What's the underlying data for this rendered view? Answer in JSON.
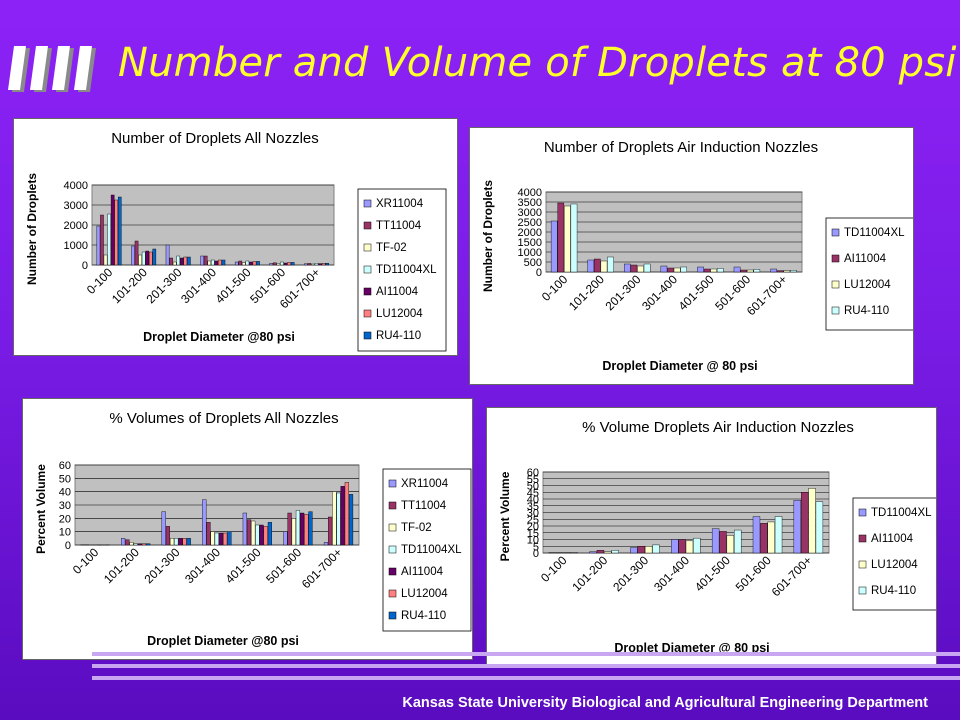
{
  "slide": {
    "title": "Number and Volume of Droplets at 80 psi",
    "footer": "Kansas State University Biological and Agricultural Engineering Department",
    "colors": {
      "background": "#8a20f0",
      "title": "#ffff2a",
      "plot_area": "#c0c0c0"
    }
  },
  "chart_data": [
    {
      "type": "bar",
      "title": "Number of Droplets All Nozzles",
      "xlabel": "Droplet Diameter @80 psi",
      "ylabel": "Number of Droplets",
      "ylim": [
        0,
        4000
      ],
      "yticks": [
        0,
        1000,
        2000,
        3000,
        4000
      ],
      "categories": [
        "0-100",
        "101-200",
        "201-300",
        "301-400",
        "401-500",
        "501-600",
        "601-700+"
      ],
      "legend_position": "right",
      "series": [
        {
          "name": "XR11004",
          "color": "#9999ff",
          "values": [
            1950,
            950,
            1000,
            450,
            150,
            90,
            60
          ]
        },
        {
          "name": "TT11004",
          "color": "#993366",
          "values": [
            2500,
            1200,
            350,
            450,
            200,
            110,
            80
          ]
        },
        {
          "name": "TF-02",
          "color": "#ffffcc",
          "values": [
            500,
            500,
            150,
            200,
            120,
            80,
            50
          ]
        },
        {
          "name": "TD11004XL",
          "color": "#ccffff",
          "values": [
            2550,
            650,
            450,
            250,
            200,
            150,
            90
          ]
        },
        {
          "name": "AI11004",
          "color": "#660066",
          "values": [
            3500,
            700,
            350,
            200,
            150,
            100,
            70
          ]
        },
        {
          "name": "LU12004",
          "color": "#ff8080",
          "values": [
            3250,
            650,
            400,
            250,
            180,
            130,
            90
          ]
        },
        {
          "name": "RU4-110",
          "color": "#0066cc",
          "values": [
            3400,
            800,
            400,
            250,
            180,
            130,
            90
          ]
        }
      ]
    },
    {
      "type": "bar",
      "title": "Number of Droplets Air Induction Nozzles",
      "xlabel": "Droplet Diameter @ 80 psi",
      "ylabel": "Number of Droplets",
      "ylim": [
        0,
        4000
      ],
      "yticks": [
        0,
        500,
        1000,
        1500,
        2000,
        2500,
        3000,
        3500,
        4000
      ],
      "categories": [
        "0-100",
        "101-200",
        "201-300",
        "301-400",
        "401-500",
        "501-600",
        "601-700+"
      ],
      "legend_position": "right",
      "series": [
        {
          "name": "TD11004XL",
          "color": "#9999ff",
          "values": [
            2550,
            600,
            400,
            300,
            250,
            250,
            150
          ]
        },
        {
          "name": "AI11004",
          "color": "#993366",
          "values": [
            3450,
            650,
            350,
            200,
            150,
            100,
            70
          ]
        },
        {
          "name": "LU12004",
          "color": "#ffffcc",
          "values": [
            3300,
            550,
            300,
            200,
            150,
            100,
            70
          ]
        },
        {
          "name": "RU4-110",
          "color": "#ccffff",
          "values": [
            3400,
            750,
            400,
            250,
            180,
            130,
            90
          ]
        }
      ]
    },
    {
      "type": "bar",
      "title": "% Volumes of Droplets All Nozzles",
      "xlabel": "Droplet Diameter @80 psi",
      "ylabel": "Percent Volume",
      "ylim": [
        0,
        60
      ],
      "yticks": [
        0,
        10,
        20,
        30,
        40,
        50,
        60
      ],
      "categories": [
        "0-100",
        "101-200",
        "201-300",
        "301-400",
        "401-500",
        "501-600",
        "601-700+"
      ],
      "legend_position": "right",
      "series": [
        {
          "name": "XR11004",
          "color": "#9999ff",
          "values": [
            0.2,
            5,
            25,
            34,
            24,
            10,
            2
          ]
        },
        {
          "name": "TT11004",
          "color": "#993366",
          "values": [
            0.2,
            4,
            14,
            17,
            19,
            24,
            21
          ]
        },
        {
          "name": "TF-02",
          "color": "#ffffcc",
          "values": [
            0.1,
            2,
            5,
            10,
            18,
            20,
            40
          ]
        },
        {
          "name": "TD11004XL",
          "color": "#ccffff",
          "values": [
            0.1,
            1,
            5,
            9,
            15,
            26,
            39
          ]
        },
        {
          "name": "AI11004",
          "color": "#660066",
          "values": [
            0.1,
            1,
            5,
            9,
            15,
            24,
            44
          ]
        },
        {
          "name": "LU12004",
          "color": "#ff8080",
          "values": [
            0.1,
            1,
            5,
            9,
            14,
            23,
            47
          ]
        },
        {
          "name": "RU4-110",
          "color": "#0066cc",
          "values": [
            0.1,
            1,
            5,
            10,
            17,
            25,
            38
          ]
        }
      ]
    },
    {
      "type": "bar",
      "title": "% Volume Droplets Air Induction Nozzles",
      "xlabel": "Droplet Diameter @ 80 psi",
      "ylabel": "Percent Volume",
      "ylim": [
        0,
        60
      ],
      "yticks": [
        0,
        5,
        10,
        15,
        20,
        25,
        30,
        35,
        40,
        45,
        50,
        55,
        60
      ],
      "categories": [
        "0-100",
        "101-200",
        "201-300",
        "301-400",
        "401-500",
        "501-600",
        "601-700+"
      ],
      "legend_position": "right",
      "series": [
        {
          "name": "TD11004XL",
          "color": "#9999ff",
          "values": [
            0.3,
            1,
            4,
            10,
            18,
            27,
            39
          ]
        },
        {
          "name": "AI11004",
          "color": "#993366",
          "values": [
            0.3,
            2,
            5,
            10,
            16,
            22,
            45
          ]
        },
        {
          "name": "LU12004",
          "color": "#ffffcc",
          "values": [
            0.3,
            1,
            5,
            9,
            13,
            23,
            48
          ]
        },
        {
          "name": "RU4-110",
          "color": "#ccffff",
          "values": [
            0.4,
            2,
            6,
            11,
            17,
            27,
            38
          ]
        }
      ]
    }
  ]
}
